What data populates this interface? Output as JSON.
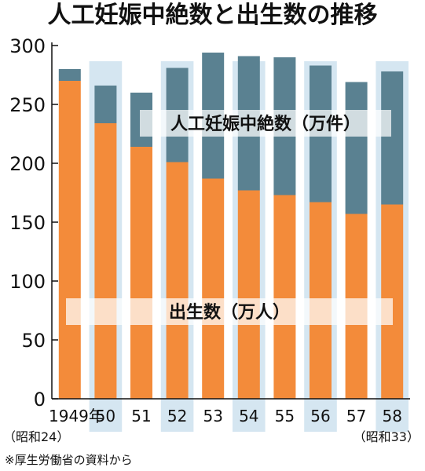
{
  "title": "人工妊娠中絶数と出生数の推移",
  "source": "※厚生労働省の資料から",
  "colors": {
    "births": "#f38b3a",
    "abortions": "#5a8191",
    "band_blue": "#d5e6f1",
    "band_white": "#f2f6f9",
    "label_bg": "#ffffff"
  },
  "chart_data": {
    "type": "bar",
    "stacked": true,
    "categories": [
      "1949年",
      "50",
      "51",
      "52",
      "53",
      "54",
      "55",
      "56",
      "57",
      "58"
    ],
    "era_labels": {
      "first": "（昭和24）",
      "last": "（昭和33）"
    },
    "series": [
      {
        "name": "出生数（万人）",
        "values": [
          270,
          234,
          214,
          201,
          187,
          177,
          173,
          167,
          157,
          165
        ]
      },
      {
        "name": "人工妊娠中絶数（万件）",
        "values": [
          10,
          32,
          46,
          80,
          107,
          114,
          117,
          116,
          112,
          113
        ]
      }
    ],
    "ylim": [
      0,
      300
    ],
    "yticks": [
      0,
      50,
      100,
      150,
      200,
      250,
      300
    ],
    "highlighted_categories": [
      1,
      3,
      5,
      7,
      9
    ],
    "grid": false
  }
}
